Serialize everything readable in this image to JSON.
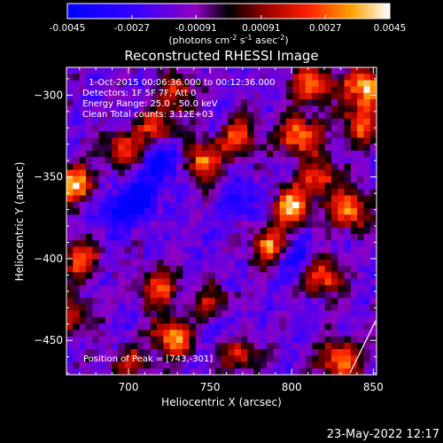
{
  "chart_data": {
    "type": "heatmap",
    "title": "Reconstructed RHESSI Image",
    "xlabel": "Heliocentric X (arcsec)",
    "ylabel": "Heliocentric Y (arcsec)",
    "xlim": [
      662,
      852
    ],
    "ylim": [
      -471,
      -283
    ],
    "xticks": [
      700,
      750,
      800,
      850
    ],
    "yticks": [
      -300,
      -350,
      -400,
      -450
    ],
    "colorbar": {
      "ticks": [
        "-0.0045",
        "-0.0027",
        "-0.00091",
        "0.00091",
        "0.0027",
        "0.0045"
      ],
      "range": [
        -0.0045,
        0.0045
      ],
      "unit_label": "(photons cm",
      "unit_sup1": "-2",
      "unit_mid": " s",
      "unit_sup2": "-1",
      "unit_mid2": " asec",
      "unit_sup3": "-2",
      "unit_end": ")"
    },
    "annotations": [
      "1-Oct-2015 00:06:36.000 to 00:12:36.000",
      "Detectors: 1F 5F 7F, Att 0",
      "Energy Range: 25.0 - 50.0 keV",
      "Clean    Total counts: 3.12E+03"
    ],
    "peak_label": "Position of Peak = [743,-301]",
    "peak": [
      743,
      -301
    ],
    "hot_spots": [
      {
        "x": 845,
        "y": -295,
        "v": 0.0045
      },
      {
        "x": 813,
        "y": -293,
        "v": 0.0035
      },
      {
        "x": 730,
        "y": -298,
        "v": 0.0028
      },
      {
        "x": 718,
        "y": -320,
        "v": 0.003
      },
      {
        "x": 768,
        "y": -325,
        "v": 0.003
      },
      {
        "x": 805,
        "y": -325,
        "v": 0.0042
      },
      {
        "x": 843,
        "y": -318,
        "v": 0.0035
      },
      {
        "x": 697,
        "y": -333,
        "v": 0.003
      },
      {
        "x": 745,
        "y": -340,
        "v": 0.0038
      },
      {
        "x": 668,
        "y": -355,
        "v": 0.004
      },
      {
        "x": 818,
        "y": -350,
        "v": 0.003
      },
      {
        "x": 800,
        "y": -368,
        "v": 0.0042
      },
      {
        "x": 836,
        "y": -370,
        "v": 0.004
      },
      {
        "x": 670,
        "y": -400,
        "v": 0.0032
      },
      {
        "x": 787,
        "y": -392,
        "v": 0.0035
      },
      {
        "x": 818,
        "y": -410,
        "v": 0.004
      },
      {
        "x": 718,
        "y": -418,
        "v": 0.003
      },
      {
        "x": 752,
        "y": -428,
        "v": 0.0025
      },
      {
        "x": 665,
        "y": -435,
        "v": 0.0025
      },
      {
        "x": 727,
        "y": -448,
        "v": 0.004
      },
      {
        "x": 768,
        "y": -458,
        "v": 0.0028
      },
      {
        "x": 830,
        "y": -462,
        "v": 0.0042
      },
      {
        "x": 700,
        "y": -465,
        "v": 0.0022
      }
    ],
    "cold_spots": [
      {
        "x": 722,
        "y": -340,
        "v": -0.003
      },
      {
        "x": 707,
        "y": -362,
        "v": -0.0025
      },
      {
        "x": 690,
        "y": -372,
        "v": -0.002
      },
      {
        "x": 805,
        "y": -400,
        "v": -0.0022
      },
      {
        "x": 770,
        "y": -365,
        "v": -0.0015
      },
      {
        "x": 760,
        "y": -440,
        "v": -0.0012
      }
    ]
  },
  "footer": {
    "date": "23-May-2022 12:17"
  },
  "colors": {
    "background": "#000000",
    "text": "#ffffff"
  }
}
